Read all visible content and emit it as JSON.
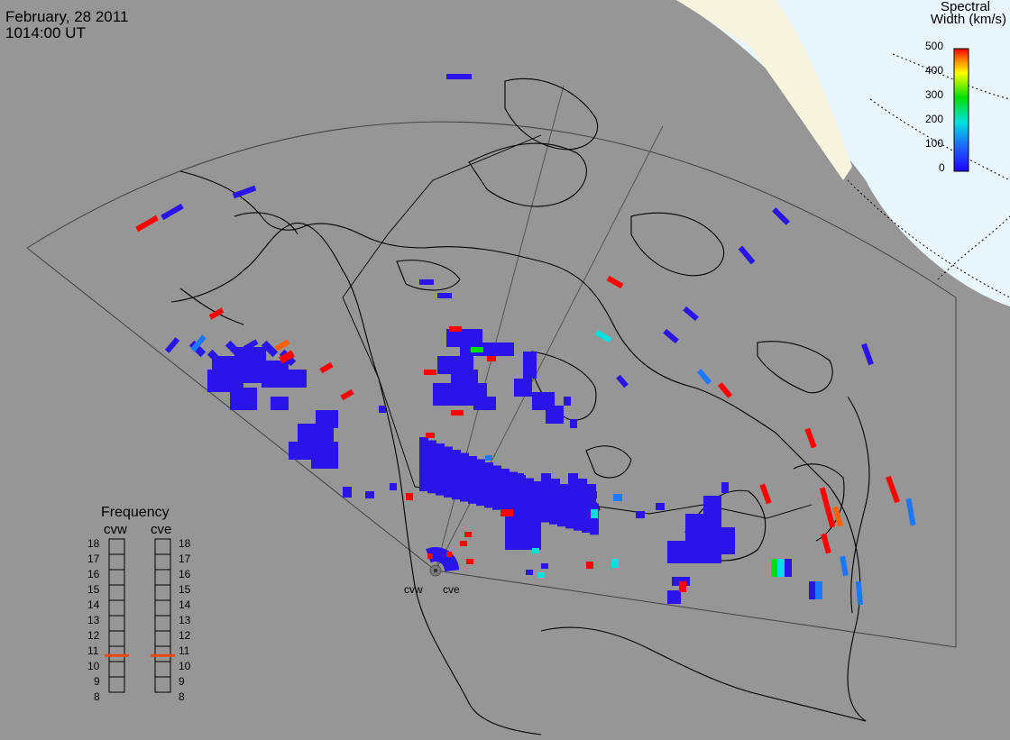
{
  "header": {
    "date": "February, 28 2011",
    "time": "1014:00 UT"
  },
  "legend": {
    "title_line1": "Spectral",
    "title_line2": "Width (km/s)",
    "ticks": [
      "500",
      "400",
      "300",
      "200",
      "100",
      "0"
    ],
    "colors": [
      "#ff0000",
      "#ff8c00",
      "#ffff00",
      "#00e000",
      "#00e0e0",
      "#1e64ff",
      "#1e00ff"
    ]
  },
  "frequency": {
    "title": "Frequency",
    "radars": [
      "cvw",
      "cve"
    ],
    "ticks": [
      "18",
      "17",
      "16",
      "15",
      "14",
      "13",
      "12",
      "11",
      "10",
      "9",
      "8"
    ],
    "current_mhz": [
      10.9,
      10.9
    ],
    "marker_color": "#e64b14"
  },
  "radar_sites": [
    "cvw",
    "cve"
  ],
  "colors": {
    "background": "#969696",
    "polar_cap": "#eaf6fd",
    "dark_sector": "#f7f4df",
    "scatter_blue": "#2a14ea"
  }
}
